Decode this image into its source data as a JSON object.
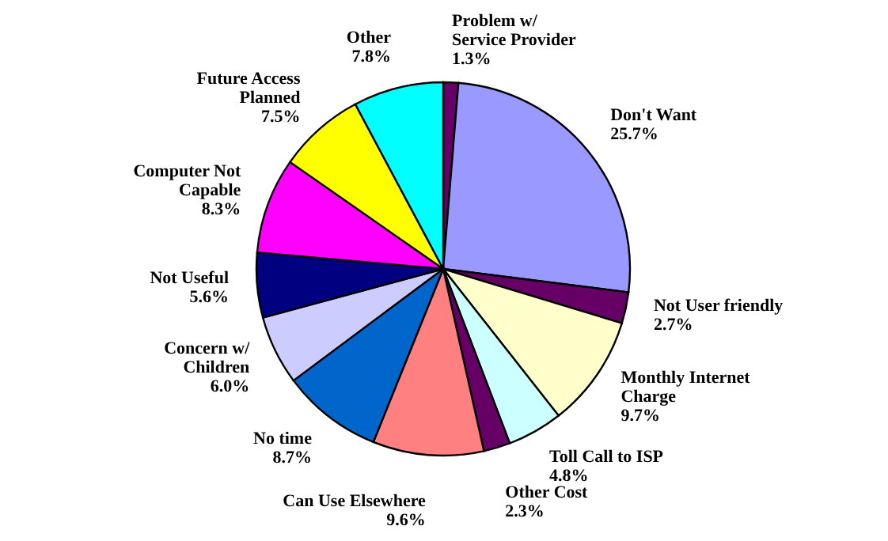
{
  "chart_data": {
    "type": "pie",
    "categories": [
      "Problem w/ Service Provider",
      "Don't Want",
      "Not User friendly",
      "Monthly Internet Charge",
      "Toll Call to ISP",
      "Other Cost",
      "Can Use Elsewhere",
      "No time",
      "Concern w/ Children",
      "Not Useful",
      "Computer Not Capable",
      "Future Access Planned",
      "Other"
    ],
    "values": [
      1.3,
      25.7,
      2.7,
      9.7,
      4.8,
      2.3,
      9.6,
      8.7,
      6.0,
      5.6,
      8.3,
      7.5,
      7.8
    ],
    "value_labels": [
      "1.3%",
      "25.7%",
      "2.7%",
      "9.7%",
      "4.8%",
      "2.3%",
      "9.6%",
      "8.7%",
      "6.0%",
      "5.6%",
      "8.3%",
      "7.5%",
      "7.8%"
    ],
    "colors": [
      "#660066",
      "#9999ff",
      "#660066",
      "#ffffcc",
      "#ccffff",
      "#660066",
      "#ff8080",
      "#0066cc",
      "#ccccff",
      "#000080",
      "#ff00ff",
      "#ffff00",
      "#00ffff"
    ]
  }
}
